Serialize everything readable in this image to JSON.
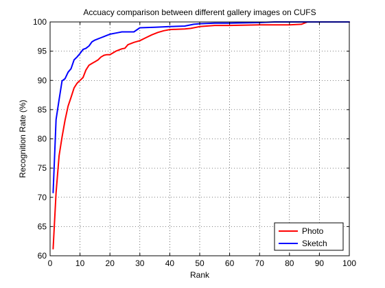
{
  "chart_data": {
    "type": "line",
    "title": "Accuacy comparison between different gallery images on CUFS",
    "xlabel": "Rank",
    "ylabel": "Recognition Rate (%)",
    "xlim": [
      0,
      100
    ],
    "ylim": [
      60,
      100
    ],
    "xticks": [
      "0",
      "10",
      "20",
      "30",
      "40",
      "50",
      "60",
      "70",
      "80",
      "90",
      "100"
    ],
    "yticks": [
      "60",
      "65",
      "70",
      "75",
      "80",
      "85",
      "90",
      "95",
      "100"
    ],
    "grid": true,
    "legend_position": "bottom-right",
    "series": [
      {
        "name": "Photo",
        "color": "#ff0000",
        "x": [
          1,
          2,
          3,
          4,
          5,
          6,
          7,
          8,
          9,
          10,
          11,
          12,
          13,
          14,
          15,
          16,
          17,
          18,
          19,
          20,
          22,
          24,
          25,
          26,
          28,
          30,
          32,
          34,
          36,
          38,
          40,
          45,
          47,
          50,
          55,
          60,
          70,
          80,
          84,
          86,
          100
        ],
        "y": [
          61.2,
          70.8,
          77.1,
          80.3,
          83.2,
          85.6,
          87.1,
          88.7,
          89.5,
          90.0,
          90.5,
          91.8,
          92.6,
          92.9,
          93.2,
          93.5,
          94.0,
          94.3,
          94.4,
          94.4,
          95.0,
          95.4,
          95.5,
          96.1,
          96.5,
          96.8,
          97.3,
          97.8,
          98.2,
          98.5,
          98.7,
          98.8,
          98.9,
          99.2,
          99.4,
          99.4,
          99.5,
          99.5,
          99.6,
          100.0,
          100.0
        ]
      },
      {
        "name": "Sketch",
        "color": "#0000ff",
        "x": [
          1,
          2,
          3,
          4,
          5,
          6,
          7,
          8,
          9,
          10,
          11,
          12,
          13,
          14,
          15,
          16,
          17,
          18,
          19,
          20,
          22,
          24,
          26,
          28,
          30,
          35,
          40,
          45,
          48,
          50,
          55,
          60,
          70,
          75,
          100
        ],
        "y": [
          70.8,
          83.3,
          86.7,
          89.9,
          90.3,
          91.4,
          92.0,
          93.5,
          94.0,
          94.6,
          95.3,
          95.5,
          95.9,
          96.6,
          96.9,
          97.1,
          97.3,
          97.5,
          97.7,
          97.9,
          98.1,
          98.3,
          98.3,
          98.3,
          99.0,
          99.1,
          99.2,
          99.3,
          99.6,
          99.7,
          99.8,
          99.8,
          99.9,
          100.0,
          100.0
        ]
      }
    ]
  }
}
